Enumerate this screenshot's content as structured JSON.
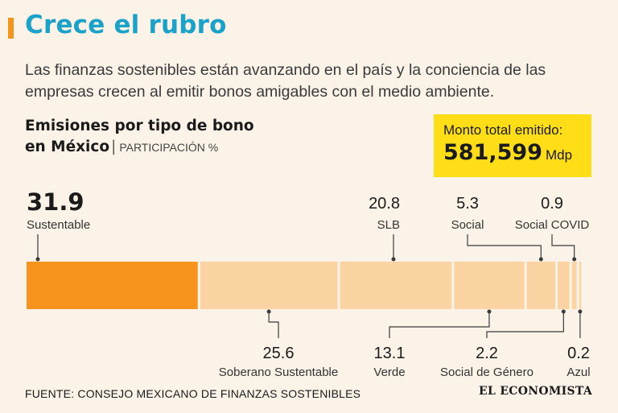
{
  "header": {
    "title": "Crece el rubro",
    "subtitle": "Las finanzas sostenibles están avanzando en el país y la conciencia de las empresas crecen al emitir bonos amigables con el medio ambiente."
  },
  "heading": {
    "line1": "Emisiones por tipo de bono",
    "line2": "en México",
    "separator": "|",
    "unit": "PARTICIPACIÓN %"
  },
  "total": {
    "label": "Monto total emitido:",
    "value": "581,599",
    "unit": "Mdp"
  },
  "chart_data": {
    "type": "bar",
    "orientation": "horizontal-stacked",
    "title": "Emisiones por tipo de bono en México",
    "unit": "PARTICIPACIÓN %",
    "segments": [
      {
        "name": "Sustentable",
        "value": 31.9,
        "label": "31.9",
        "color": "#f7941d",
        "label_side": "top"
      },
      {
        "name": "Soberano Sustentable",
        "value": 25.6,
        "label": "25.6",
        "color": "#fcd4a4",
        "label_side": "bottom"
      },
      {
        "name": "SLB",
        "value": 20.8,
        "label": "20.8",
        "color": "#fcd4a4",
        "label_side": "top"
      },
      {
        "name": "Verde",
        "value": 13.1,
        "label": "13.1",
        "color": "#fcd4a4",
        "label_side": "bottom"
      },
      {
        "name": "Social",
        "value": 5.3,
        "label": "5.3",
        "color": "#fcd4a4",
        "label_side": "top"
      },
      {
        "name": "Social de Género",
        "value": 2.2,
        "label": "2.2",
        "color": "#fcd4a4",
        "label_side": "bottom"
      },
      {
        "name": "Social COVID",
        "value": 0.9,
        "label": "0.9",
        "color": "#fcd4a4",
        "label_side": "top"
      },
      {
        "name": "Azul",
        "value": 0.2,
        "label": "0.2",
        "color": "#fcd4a4",
        "label_side": "bottom"
      }
    ]
  },
  "footer": {
    "source": "FUENTE: CONSEJO MEXICANO DE FINANZAS SOSTENIBLES",
    "logo": "EL ECONOMISTA"
  }
}
